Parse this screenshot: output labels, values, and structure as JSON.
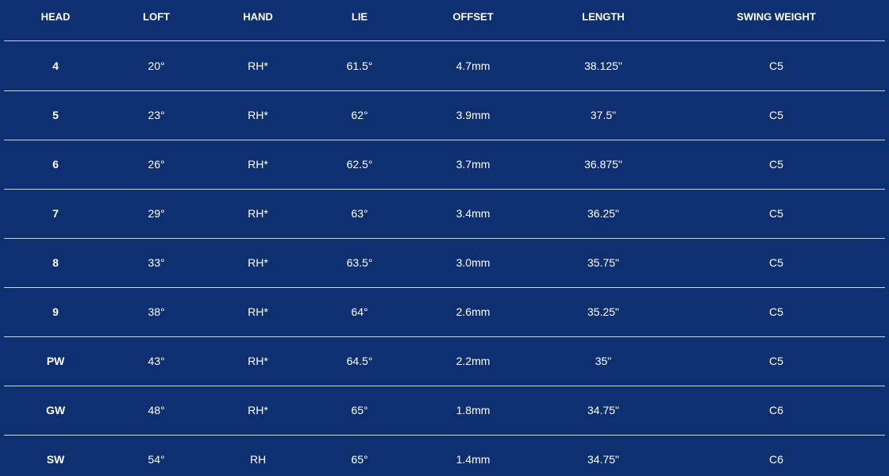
{
  "table": {
    "columns": [
      "HEAD",
      "LOFT",
      "HAND",
      "LIE",
      "OFFSET",
      "LENGTH",
      "SWING WEIGHT"
    ],
    "rows": [
      [
        "4",
        "20°",
        "RH*",
        "61.5°",
        "4.7mm",
        "38.125\"",
        "C5"
      ],
      [
        "5",
        "23°",
        "RH*",
        "62°",
        "3.9mm",
        "37.5\"",
        "C5"
      ],
      [
        "6",
        "26°",
        "RH*",
        "62.5°",
        "3.7mm",
        "36.875\"",
        "C5"
      ],
      [
        "7",
        "29°",
        "RH*",
        "63°",
        "3.4mm",
        "36.25\"",
        "C5"
      ],
      [
        "8",
        "33°",
        "RH*",
        "63.5°",
        "3.0mm",
        "35.75\"",
        "C5"
      ],
      [
        "9",
        "38°",
        "RH*",
        "64°",
        "2.6mm",
        "35.25\"",
        "C5"
      ],
      [
        "PW",
        "43°",
        "RH*",
        "64.5°",
        "2.2mm",
        "35\"",
        "C5"
      ],
      [
        "GW",
        "48°",
        "RH*",
        "65°",
        "1.8mm",
        "34.75\"",
        "C6"
      ],
      [
        "SW",
        "54°",
        "RH",
        "65°",
        "1.4mm",
        "34.75\"",
        "C6"
      ]
    ]
  }
}
